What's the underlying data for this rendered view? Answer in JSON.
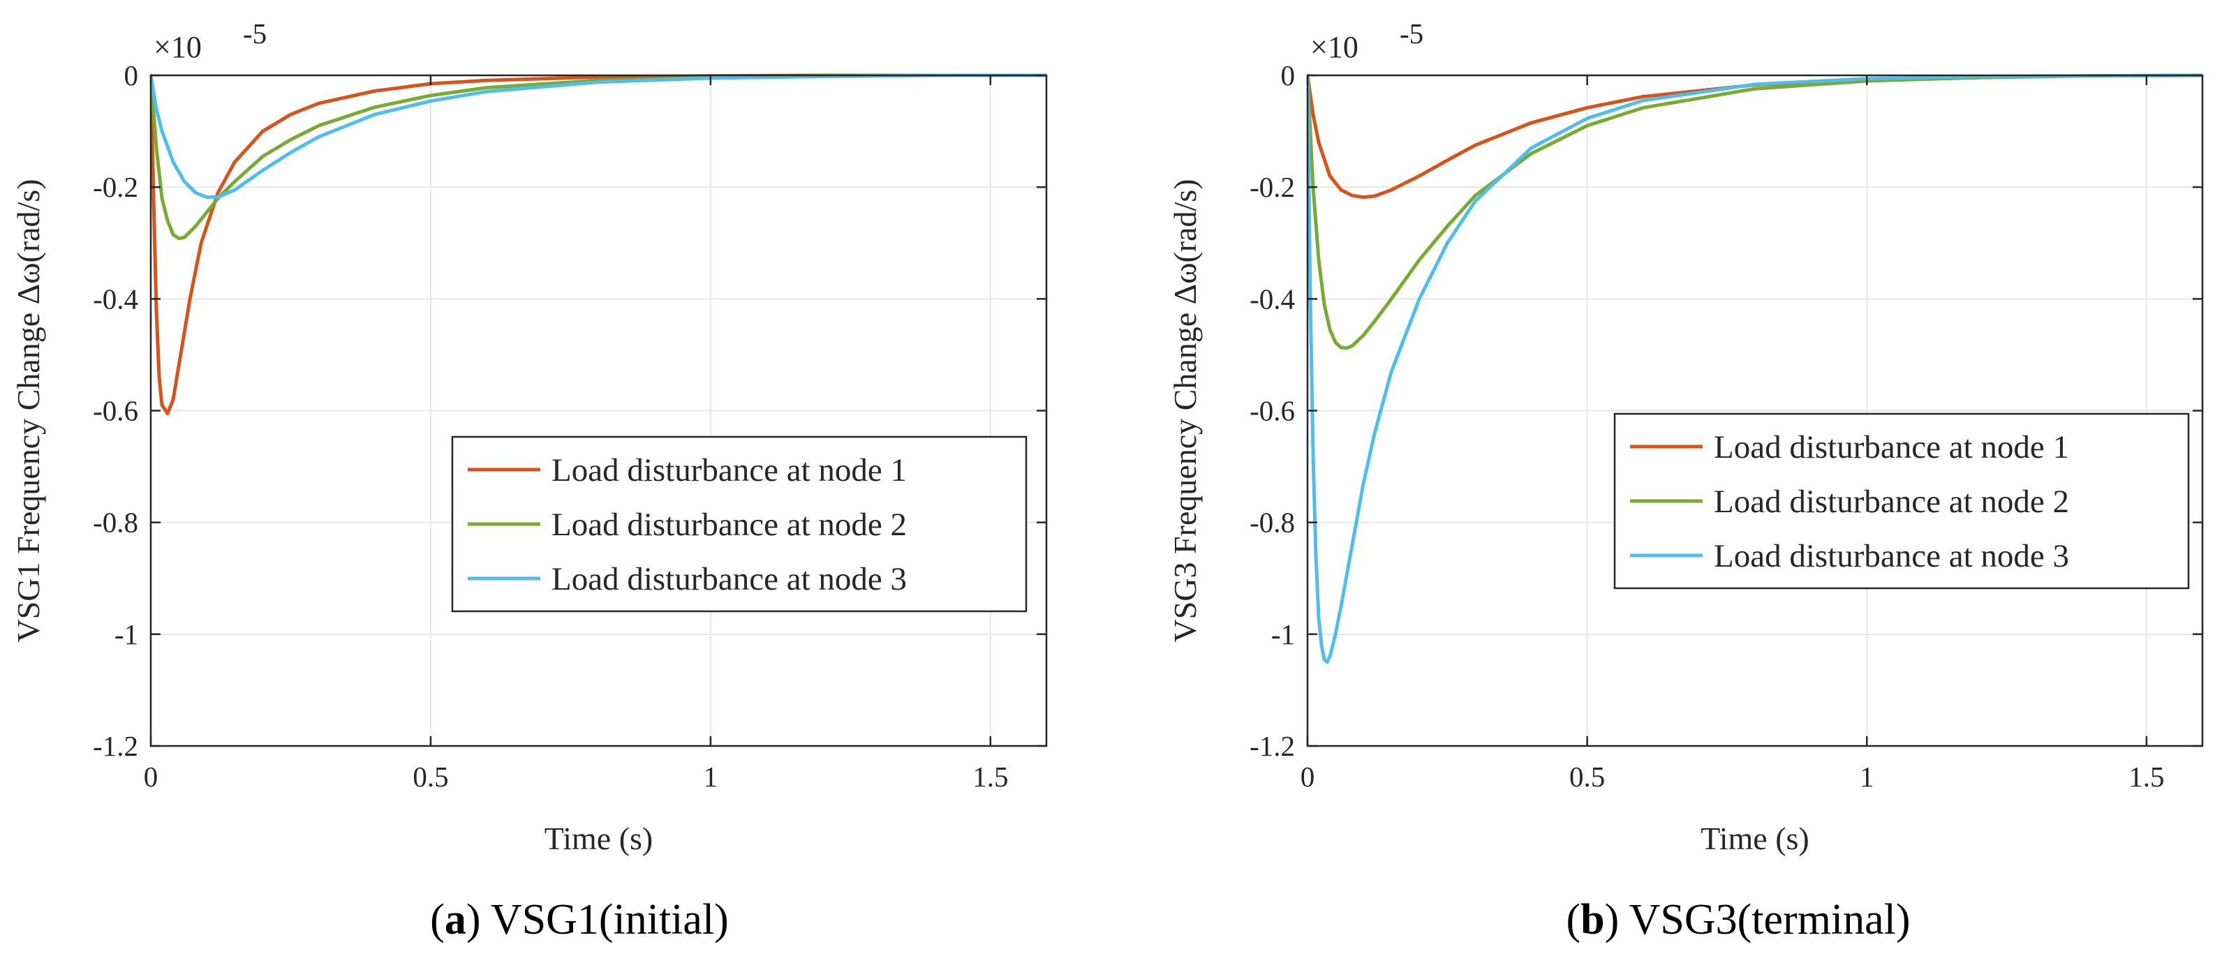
{
  "chart_data": [
    {
      "type": "line",
      "panel": "a",
      "caption_letter": "a",
      "caption_text": "VSG1(initial)",
      "title": "",
      "xlabel": "Time (s)",
      "ylabel": "VSG1 Frequency Change Δω(rad/s)",
      "exponent_label": "×10",
      "exponent_power": "-5",
      "xlim": [
        0,
        1.6
      ],
      "ylim": [
        -1.2,
        0
      ],
      "xticks": [
        0,
        0.5,
        1,
        1.5
      ],
      "xtick_labels": [
        "0",
        "0.5",
        "1",
        "1.5"
      ],
      "yticks": [
        0,
        -0.2,
        -0.4,
        -0.6,
        -0.8,
        -1,
        -1.2
      ],
      "ytick_labels": [
        "0",
        "-0.2",
        "-0.4",
        "-0.6",
        "-0.8",
        "-1",
        "-1.2"
      ],
      "grid": true,
      "legend_position": "center-right",
      "series": [
        {
          "name": "Load disturbance at node 1",
          "color": "#D95319",
          "x": [
            0,
            0.005,
            0.01,
            0.015,
            0.02,
            0.03,
            0.04,
            0.05,
            0.07,
            0.09,
            0.12,
            0.15,
            0.2,
            0.25,
            0.3,
            0.4,
            0.5,
            0.6,
            0.8,
            1.0,
            1.2,
            1.4,
            1.6
          ],
          "y": [
            0,
            -0.22,
            -0.42,
            -0.54,
            -0.59,
            -0.605,
            -0.58,
            -0.52,
            -0.4,
            -0.3,
            -0.21,
            -0.155,
            -0.1,
            -0.07,
            -0.05,
            -0.028,
            -0.015,
            -0.009,
            -0.003,
            -0.001,
            0,
            0,
            0
          ]
        },
        {
          "name": "Load disturbance at node 2",
          "color": "#77AC30",
          "x": [
            0,
            0.01,
            0.02,
            0.03,
            0.04,
            0.05,
            0.06,
            0.08,
            0.1,
            0.12,
            0.15,
            0.2,
            0.25,
            0.3,
            0.4,
            0.5,
            0.6,
            0.8,
            1.0,
            1.2,
            1.4,
            1.6
          ],
          "y": [
            0,
            -0.13,
            -0.22,
            -0.26,
            -0.285,
            -0.292,
            -0.29,
            -0.27,
            -0.245,
            -0.22,
            -0.19,
            -0.145,
            -0.115,
            -0.09,
            -0.057,
            -0.036,
            -0.022,
            -0.009,
            -0.004,
            -0.001,
            0,
            0
          ]
        },
        {
          "name": "Load disturbance at node 3",
          "color": "#4DBEEE",
          "x": [
            0,
            0.01,
            0.02,
            0.04,
            0.06,
            0.08,
            0.1,
            0.12,
            0.15,
            0.2,
            0.25,
            0.3,
            0.4,
            0.5,
            0.6,
            0.8,
            1.0,
            1.2,
            1.4,
            1.6
          ],
          "y": [
            0,
            -0.06,
            -0.1,
            -0.155,
            -0.19,
            -0.21,
            -0.218,
            -0.218,
            -0.205,
            -0.17,
            -0.138,
            -0.11,
            -0.07,
            -0.046,
            -0.029,
            -0.012,
            -0.005,
            -0.002,
            0,
            0
          ]
        }
      ]
    },
    {
      "type": "line",
      "panel": "b",
      "caption_letter": "b",
      "caption_text": "VSG3(terminal)",
      "title": "",
      "xlabel": "Time (s)",
      "ylabel": "VSG3 Frequency Change Δω(rad/s)",
      "exponent_label": "×10",
      "exponent_power": "-5",
      "xlim": [
        0,
        1.6
      ],
      "ylim": [
        -1.2,
        0
      ],
      "xticks": [
        0,
        0.5,
        1,
        1.5
      ],
      "xtick_labels": [
        "0",
        "0.5",
        "1",
        "1.5"
      ],
      "yticks": [
        0,
        -0.2,
        -0.4,
        -0.6,
        -0.8,
        -1,
        -1.2
      ],
      "ytick_labels": [
        "0",
        "-0.2",
        "-0.4",
        "-0.6",
        "-0.8",
        "-1",
        "-1.2"
      ],
      "grid": true,
      "legend_position": "center-right",
      "series": [
        {
          "name": "Load disturbance at node 1",
          "color": "#D95319",
          "x": [
            0,
            0.01,
            0.02,
            0.04,
            0.06,
            0.08,
            0.1,
            0.12,
            0.15,
            0.2,
            0.25,
            0.3,
            0.4,
            0.5,
            0.6,
            0.8,
            1.0,
            1.2,
            1.4,
            1.6
          ],
          "y": [
            0,
            -0.07,
            -0.12,
            -0.18,
            -0.205,
            -0.215,
            -0.218,
            -0.216,
            -0.205,
            -0.18,
            -0.152,
            -0.125,
            -0.085,
            -0.058,
            -0.038,
            -0.017,
            -0.007,
            -0.003,
            -0.001,
            0
          ]
        },
        {
          "name": "Load disturbance at node 2",
          "color": "#77AC30",
          "x": [
            0,
            0.01,
            0.02,
            0.03,
            0.04,
            0.05,
            0.06,
            0.07,
            0.08,
            0.1,
            0.12,
            0.15,
            0.2,
            0.25,
            0.3,
            0.4,
            0.5,
            0.6,
            0.8,
            1.0,
            1.2,
            1.4,
            1.6
          ],
          "y": [
            0,
            -0.2,
            -0.33,
            -0.41,
            -0.455,
            -0.478,
            -0.487,
            -0.488,
            -0.484,
            -0.465,
            -0.44,
            -0.4,
            -0.33,
            -0.27,
            -0.215,
            -0.14,
            -0.09,
            -0.058,
            -0.024,
            -0.01,
            -0.004,
            -0.001,
            0
          ]
        },
        {
          "name": "Load disturbance at node 3",
          "color": "#4DBEEE",
          "x": [
            0,
            0.005,
            0.01,
            0.015,
            0.02,
            0.025,
            0.03,
            0.035,
            0.04,
            0.05,
            0.06,
            0.08,
            0.1,
            0.12,
            0.15,
            0.2,
            0.25,
            0.3,
            0.4,
            0.5,
            0.6,
            0.8,
            1.0,
            1.2,
            1.4,
            1.6
          ],
          "y": [
            0,
            -0.4,
            -0.68,
            -0.86,
            -0.97,
            -1.02,
            -1.045,
            -1.05,
            -1.04,
            -1.0,
            -0.95,
            -0.84,
            -0.73,
            -0.64,
            -0.53,
            -0.4,
            -0.3,
            -0.225,
            -0.13,
            -0.077,
            -0.045,
            -0.016,
            -0.006,
            -0.002,
            -0.001,
            0
          ]
        }
      ]
    }
  ]
}
